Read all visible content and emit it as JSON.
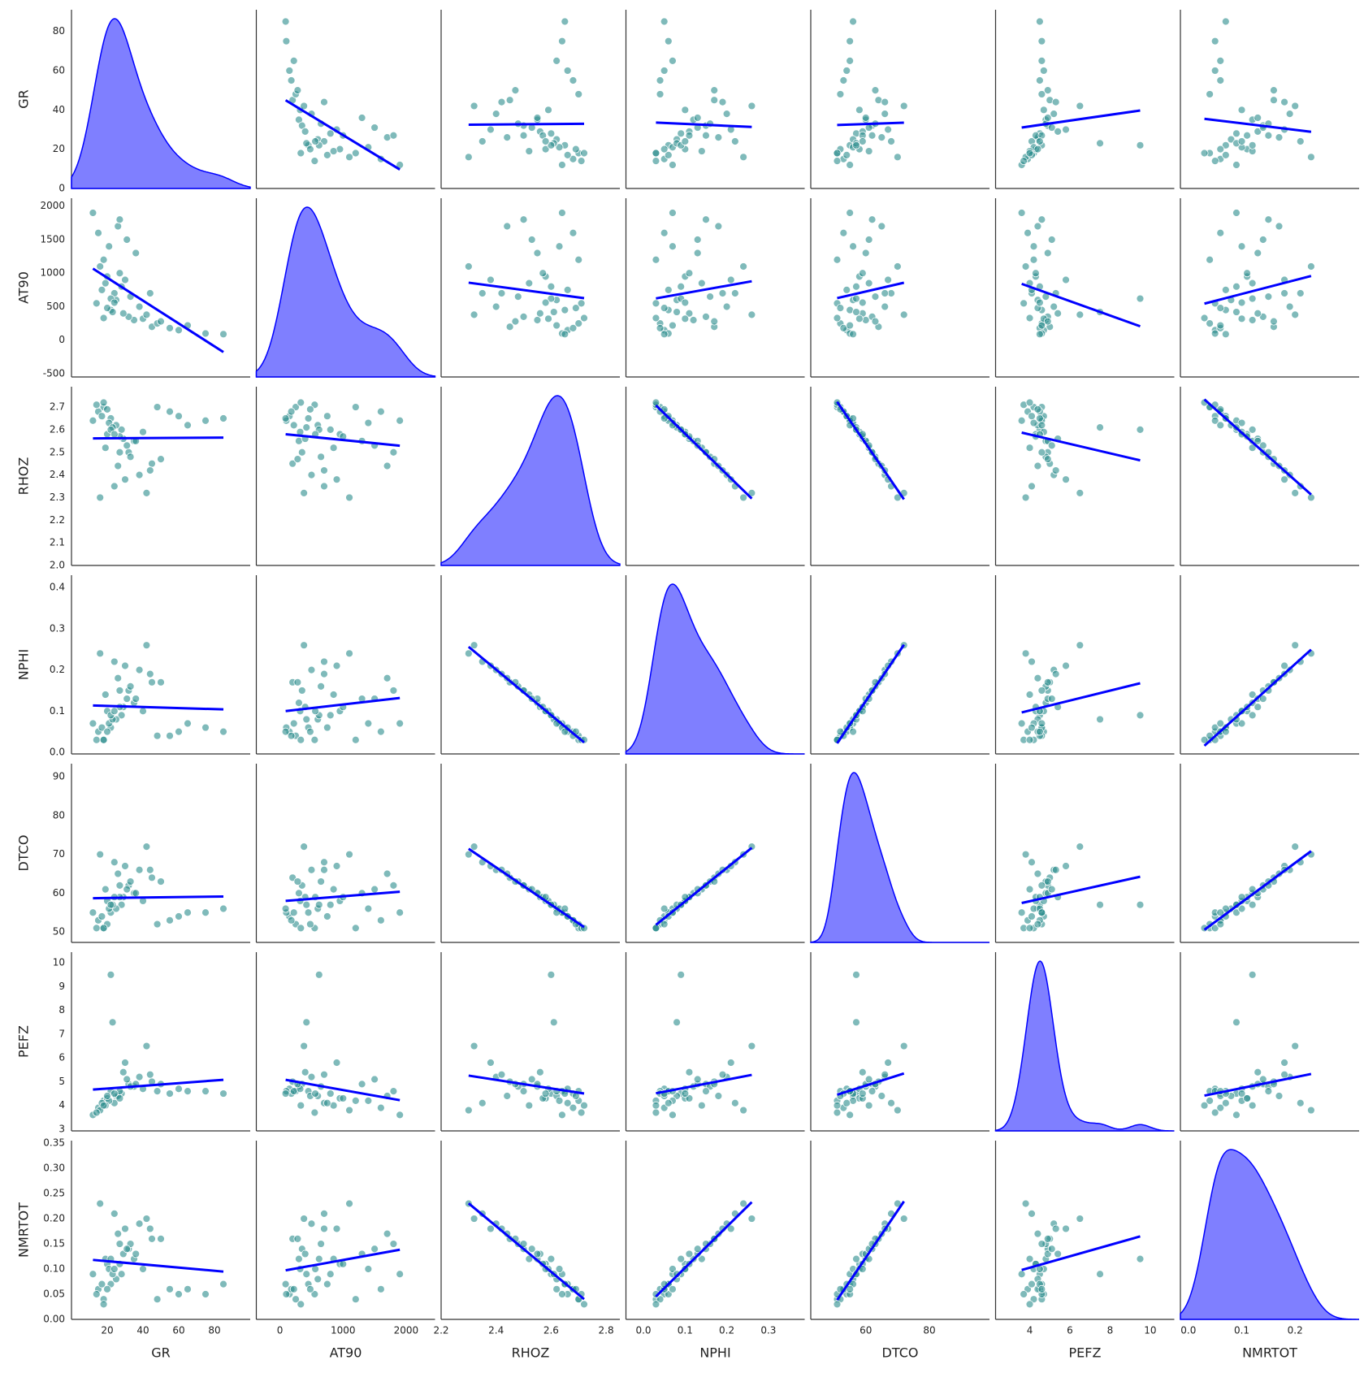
{
  "chart_data": {
    "type": "pairplot",
    "point_color": "#2a8c8c",
    "fit_color": "#0000ff",
    "kde_color": "#0000ff",
    "variables": [
      {
        "name": "GR",
        "xlim": [
          0,
          100
        ],
        "ylim": [
          0,
          91
        ],
        "xticks": [
          20,
          40,
          60,
          80
        ],
        "yticks": [
          0,
          20,
          40,
          60,
          80
        ],
        "values": [
          22,
          18,
          35,
          28,
          15,
          45,
          25,
          60,
          20,
          32,
          12,
          38,
          24,
          16,
          48,
          29,
          21,
          55,
          33,
          19,
          75,
          26,
          40,
          14,
          30,
          23,
          36,
          17,
          50,
          27,
          42,
          20,
          85,
          31,
          22,
          65,
          27,
          18,
          44,
          24
        ]
      },
      {
        "name": "AT90",
        "xlim": [
          -375,
          2458
        ],
        "ylim": [
          -549,
          2118
        ],
        "xticks": [
          0,
          1000,
          2000
        ],
        "yticks": [
          -500,
          0,
          500,
          1000,
          1500,
          2000
        ],
        "values": [
          450,
          1200,
          300,
          800,
          1600,
          200,
          600,
          150,
          950,
          350,
          1900,
          500,
          700,
          1100,
          250,
          400,
          1400,
          180,
          650,
          850,
          100,
          1700,
          320,
          550,
          900,
          420,
          1300,
          750,
          280,
          1000,
          380,
          480,
          90,
          1500,
          620,
          220,
          1800,
          330,
          700,
          560
        ]
      },
      {
        "name": "RHOZ",
        "xlim": [
          2.2,
          2.85
        ],
        "ylim": [
          2.0,
          2.79
        ],
        "xticks": [
          {
            "value": 2.2,
            "label": "2.2"
          },
          2.4,
          2.6,
          2.8
        ],
        "yticks": [
          {
            "value": 2.0,
            "label": "2.0"
          },
          2.1,
          2.2,
          2.3,
          2.4,
          2.5,
          2.6,
          2.7
        ],
        "values": [
          2.65,
          2.7,
          2.55,
          2.6,
          2.68,
          2.45,
          2.62,
          2.66,
          2.58,
          2.5,
          2.64,
          2.4,
          2.35,
          2.3,
          2.7,
          2.56,
          2.63,
          2.68,
          2.48,
          2.52,
          2.64,
          2.44,
          2.59,
          2.71,
          2.38,
          2.61,
          2.55,
          2.66,
          2.47,
          2.57,
          2.32,
          2.69,
          2.65,
          2.53,
          2.6,
          2.62,
          2.5,
          2.72,
          2.42,
          2.58
        ]
      },
      {
        "name": "NPHI",
        "xlim": [
          -0.042,
          0.387
        ],
        "ylim": [
          -0.004,
          0.43
        ],
        "xticks": [
          {
            "value": 0,
            "label": "0.0"
          },
          0.1,
          0.2,
          0.3
        ],
        "yticks": [
          {
            "value": 0,
            "label": "0.0"
          },
          0.1,
          0.2,
          0.3,
          0.4
        ],
        "values": [
          0.06,
          0.03,
          0.12,
          0.09,
          0.05,
          0.17,
          0.08,
          0.05,
          0.1,
          0.15,
          0.07,
          0.2,
          0.22,
          0.24,
          0.04,
          0.11,
          0.07,
          0.04,
          0.16,
          0.14,
          0.06,
          0.18,
          0.1,
          0.03,
          0.21,
          0.08,
          0.13,
          0.06,
          0.17,
          0.11,
          0.26,
          0.05,
          0.05,
          0.13,
          0.09,
          0.07,
          0.15,
          0.03,
          0.19,
          0.1
        ]
      },
      {
        "name": "DTCO",
        "xlim": [
          42.7,
          98.9
        ],
        "ylim": [
          47.3,
          93.4
        ],
        "xticks": [
          60,
          80
        ],
        "yticks": [
          50,
          60,
          70,
          80,
          90
        ],
        "values": [
          55,
          51,
          60,
          57,
          53,
          64,
          56,
          54,
          58,
          62,
          55,
          66,
          68,
          70,
          52,
          59,
          56,
          53,
          63,
          61,
          55,
          65,
          58,
          51,
          67,
          57,
          60,
          54,
          63,
          59,
          72,
          52,
          56,
          61,
          57,
          55,
          62,
          51,
          66,
          59
        ]
      },
      {
        "name": "PEFZ",
        "xlim": [
          2.3,
          11.2
        ],
        "ylim": [
          2.93,
          10.45
        ],
        "xticks": [
          4,
          6,
          8,
          10
        ],
        "yticks": [
          3,
          4,
          5,
          6,
          7,
          8,
          9,
          10
        ],
        "values": [
          4.6,
          4.2,
          4.8,
          4.5,
          3.9,
          5.0,
          4.4,
          4.7,
          4.3,
          4.9,
          3.6,
          5.2,
          4.1,
          3.8,
          4.6,
          5.4,
          4.2,
          4.5,
          4.8,
          4.0,
          4.6,
          4.4,
          4.7,
          3.7,
          5.8,
          7.5,
          4.9,
          4.1,
          4.9,
          4.3,
          6.5,
          4.4,
          4.5,
          5.1,
          9.5,
          4.6,
          4.6,
          4.0,
          5.3,
          4.5
        ]
      },
      {
        "name": "NMRTOT",
        "xlim": [
          -0.015,
          0.32
        ],
        "ylim": [
          0,
          0.355
        ],
        "xticks": [
          {
            "value": 0,
            "label": "0.0"
          },
          0.1,
          0.2
        ],
        "yticks": [
          {
            "value": 0,
            "label": "0.00"
          },
          {
            "value": 0.05,
            "label": "0.05"
          },
          {
            "value": 0.1,
            "label": "0.10"
          },
          {
            "value": 0.15,
            "label": "0.15"
          },
          {
            "value": 0.2,
            "label": "0.20"
          },
          {
            "value": 0.25,
            "label": "0.25"
          },
          {
            "value": 0.3,
            "label": "0.30"
          },
          {
            "value": 0.35,
            "label": "0.35"
          }
        ],
        "values": [
          0.07,
          0.04,
          0.12,
          0.09,
          0.06,
          0.16,
          0.08,
          0.05,
          0.11,
          0.14,
          0.09,
          0.19,
          0.21,
          0.23,
          0.04,
          0.13,
          0.1,
          0.06,
          0.15,
          0.12,
          0.05,
          0.17,
          0.1,
          0.05,
          0.18,
          0.09,
          0.13,
          0.07,
          0.16,
          0.11,
          0.2,
          0.06,
          0.07,
          0.14,
          0.12,
          0.06,
          0.15,
          0.03,
          0.18,
          0.1
        ]
      }
    ]
  }
}
